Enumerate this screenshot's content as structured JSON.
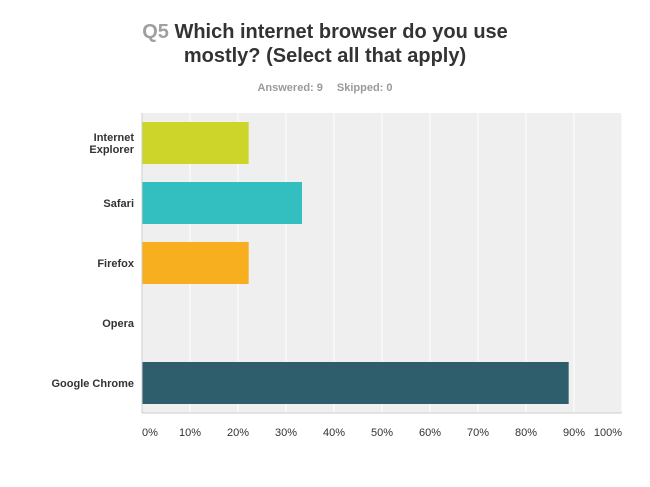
{
  "question": {
    "number": "Q5",
    "title_line1": "Which internet browser do you use",
    "title_line2": "mostly? (Select all that apply)"
  },
  "stats": {
    "answered": "Answered: 9",
    "skipped": "Skipped: 0"
  },
  "colors": {
    "plot_background": "#efefef",
    "gridline": "#ffffff",
    "axis": "#cccccc"
  },
  "chart_data": {
    "type": "bar",
    "orientation": "horizontal",
    "categories": [
      "Internet\nExplorer",
      "Safari",
      "Firefox",
      "Opera",
      "Google Chrome"
    ],
    "values": [
      22.22,
      33.33,
      22.22,
      0,
      88.89
    ],
    "unit": "%",
    "bar_colors": [
      "#cdd42a",
      "#33bebf",
      "#f7ae1f",
      "#7a7a7a",
      "#2e5e6b"
    ],
    "xlim": [
      0,
      100
    ],
    "xticks": [
      "0%",
      "10%",
      "20%",
      "30%",
      "40%",
      "50%",
      "60%",
      "70%",
      "80%",
      "90%",
      "100%"
    ],
    "grid": true,
    "legend": "none"
  }
}
